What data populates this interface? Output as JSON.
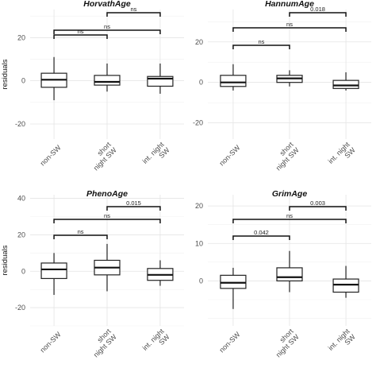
{
  "chart_data": [
    {
      "type": "box",
      "title": "HorvathAge",
      "ylabel": "residuals",
      "ylim": [
        -27,
        33
      ],
      "yticks": [
        -20,
        0,
        20
      ],
      "categories": [
        "non-SW",
        "short night SW",
        "int. night SW"
      ],
      "boxes": [
        {
          "min": -9,
          "q1": -3,
          "median": 0.5,
          "q3": 3.5,
          "max": 11
        },
        {
          "min": -5,
          "q1": -2,
          "median": -0.5,
          "q3": 2.5,
          "max": 8
        },
        {
          "min": -6,
          "q1": -2.5,
          "median": 1,
          "q3": 2,
          "max": 8
        }
      ],
      "comparisons": [
        {
          "from": 0,
          "to": 1,
          "label": "ns"
        },
        {
          "from": 0,
          "to": 2,
          "label": "ns"
        },
        {
          "from": 1,
          "to": 2,
          "label": "ns"
        }
      ]
    },
    {
      "type": "box",
      "title": "HannumAge",
      "ylabel": "",
      "ylim": [
        -28,
        36
      ],
      "yticks": [
        -20,
        0,
        20
      ],
      "categories": [
        "non-SW",
        "short night SW",
        "int. night SW"
      ],
      "boxes": [
        {
          "min": -4,
          "q1": -2,
          "median": 0,
          "q3": 3.5,
          "max": 9
        },
        {
          "min": -2,
          "q1": 0,
          "median": 2,
          "q3": 3.5,
          "max": 6
        },
        {
          "min": -4,
          "q1": -3,
          "median": -1.5,
          "q3": 1,
          "max": 5
        }
      ],
      "comparisons": [
        {
          "from": 0,
          "to": 1,
          "label": "ns"
        },
        {
          "from": 0,
          "to": 2,
          "label": "ns"
        },
        {
          "from": 1,
          "to": 2,
          "label": "0.018"
        }
      ]
    },
    {
      "type": "box",
      "title": "PhenoAge",
      "ylabel": "residuals",
      "ylim": [
        -30,
        42
      ],
      "yticks": [
        -20,
        0,
        20,
        40
      ],
      "categories": [
        "non-SW",
        "short night SW",
        "int. night SW"
      ],
      "boxes": [
        {
          "min": -13,
          "q1": -4,
          "median": 1,
          "q3": 4.5,
          "max": 10
        },
        {
          "min": -11,
          "q1": -2,
          "median": 2,
          "q3": 6,
          "max": 15
        },
        {
          "min": -8,
          "q1": -5,
          "median": -2,
          "q3": 1.5,
          "max": 6
        }
      ],
      "comparisons": [
        {
          "from": 0,
          "to": 1,
          "label": "ns"
        },
        {
          "from": 0,
          "to": 2,
          "label": "ns"
        },
        {
          "from": 1,
          "to": 2,
          "label": "0.015"
        }
      ]
    },
    {
      "type": "box",
      "title": "GrimAge",
      "ylabel": "",
      "ylim": [
        -12,
        23
      ],
      "yticks": [
        0,
        10,
        20
      ],
      "categories": [
        "non-SW",
        "short night SW",
        "int. night SW"
      ],
      "boxes": [
        {
          "min": -7.5,
          "q1": -2,
          "median": -0.5,
          "q3": 1.5,
          "max": 3.5
        },
        {
          "min": -3,
          "q1": 0,
          "median": 1,
          "q3": 3.5,
          "max": 8
        },
        {
          "min": -4.5,
          "q1": -3,
          "median": -1,
          "q3": 0.5,
          "max": 4
        }
      ],
      "comparisons": [
        {
          "from": 0,
          "to": 1,
          "label": "0.042"
        },
        {
          "from": 0,
          "to": 2,
          "label": "ns"
        },
        {
          "from": 1,
          "to": 2,
          "label": "0.003"
        }
      ]
    }
  ]
}
